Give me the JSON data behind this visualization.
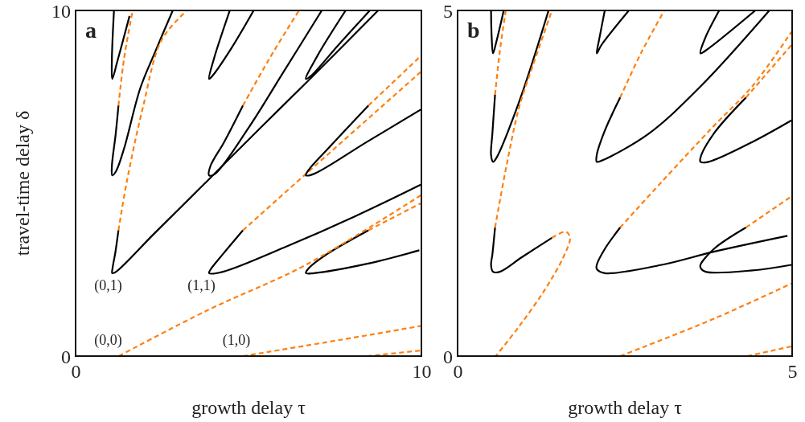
{
  "chart_data": [
    {
      "type": "line",
      "title": "a",
      "xlabel": "growth delay τ",
      "ylabel": "travel-time delay δ",
      "xlim": [
        0,
        10
      ],
      "ylim": [
        0,
        10
      ],
      "xticks": [
        0,
        10
      ],
      "yticks": [
        0,
        10
      ],
      "annotations": [
        "(0,1)",
        "(1,1)",
        "(0,0)",
        "(1,0)"
      ],
      "series": [
        {
          "color": "#000000",
          "line_style": "solid",
          "x": [
            1.11,
            1.05,
            1.06,
            1.2,
            1.56
          ],
          "values": [
            10,
            8.6,
            8.02,
            8.5,
            9.84
          ]
        },
        {
          "color": "#000000",
          "line_style": "solid",
          "x": [
            1.24,
            1.16,
            1.05,
            1.06,
            1.17,
            1.4,
            1.87,
            2.3,
            2.81
          ],
          "values": [
            7.25,
            6.43,
            5.5,
            5.23,
            5.35,
            6.0,
            7.75,
            8.8,
            10
          ]
        },
        {
          "color": "#ff7f0e",
          "line_style": "dashed",
          "x": [
            1.24,
            1.4,
            1.65
          ],
          "values": [
            7.25,
            8.6,
            10
          ]
        },
        {
          "color": "#000000",
          "line_style": "solid",
          "x": [
            1.24,
            1.15,
            1.07,
            1.06,
            1.17,
            2.25,
            3.8,
            5.34,
            6.66,
            8.75
          ],
          "values": [
            3.64,
            3.0,
            2.55,
            2.4,
            2.44,
            3.52,
            5.06,
            6.6,
            7.9,
            10
          ]
        },
        {
          "color": "#ff7f0e",
          "line_style": "dashed",
          "x": [
            1.24,
            1.48,
            1.95,
            2.49,
            3.22
          ],
          "values": [
            3.64,
            5.04,
            7.21,
            9.15,
            10
          ]
        },
        {
          "color": "#000000",
          "line_style": "solid",
          "x": [
            4.46,
            4.0,
            3.86,
            3.95,
            4.5,
            5.15
          ],
          "values": [
            10,
            8.6,
            8.02,
            8.1,
            8.9,
            10
          ]
        },
        {
          "color": "#000000",
          "line_style": "solid",
          "x": [
            4.84,
            4.3,
            3.9,
            3.86,
            4.03,
            5.0,
            6.0,
            7.12
          ],
          "values": [
            7.25,
            6.2,
            5.5,
            5.23,
            5.27,
            6.6,
            8.2,
            10
          ]
        },
        {
          "color": "#ff7f0e",
          "line_style": "dashed",
          "x": [
            4.84,
            5.6,
            6.46
          ],
          "values": [
            7.25,
            8.6,
            10
          ]
        },
        {
          "color": "#000000",
          "line_style": "solid",
          "x": [
            7.81,
            7.0,
            6.66,
            6.8,
            7.6,
            8.51
          ],
          "values": [
            10,
            8.7,
            8.02,
            8.1,
            9.0,
            10
          ]
        },
        {
          "color": "#000000",
          "line_style": "solid",
          "x": [
            4.84,
            4.26,
            3.9,
            3.86,
            4.26,
            6.12,
            8.05,
            9.98
          ],
          "values": [
            3.64,
            2.95,
            2.5,
            2.4,
            2.44,
            3.18,
            4.03,
            4.96
          ]
        },
        {
          "color": "#ff7f0e",
          "line_style": "dashed",
          "x": [
            4.84,
            6.66,
            9.98
          ],
          "values": [
            3.64,
            5.27,
            8.22
          ]
        },
        {
          "color": "#000000",
          "line_style": "solid",
          "x": [
            8.47,
            7.27,
            6.75,
            6.66,
            6.89,
            8.43,
            9.98
          ],
          "values": [
            7.25,
            5.97,
            5.4,
            5.23,
            5.27,
            6.2,
            7.13
          ]
        },
        {
          "color": "#ff7f0e",
          "line_style": "dashed",
          "x": [
            8.47,
            9.98
          ],
          "values": [
            7.25,
            8.68
          ]
        },
        {
          "color": "#000000",
          "line_style": "solid",
          "x": [
            8.47,
            7.27,
            6.75,
            6.66,
            6.89,
            8.43,
            9.94
          ],
          "values": [
            3.64,
            2.95,
            2.55,
            2.4,
            2.4,
            2.67,
            3.06
          ]
        },
        {
          "color": "#ff7f0e",
          "line_style": "dashed",
          "x": [
            8.47,
            9.98
          ],
          "values": [
            3.64,
            4.42
          ]
        },
        {
          "color": "#ff7f0e",
          "line_style": "dashed",
          "x": [
            1.25,
            3.8,
            6.66,
            9.98
          ],
          "values": [
            0,
            1.32,
            2.64,
            4.65
          ]
        },
        {
          "color": "#ff7f0e",
          "line_style": "dashed",
          "x": [
            4.84,
            7.66,
            9.98
          ],
          "values": [
            0,
            0.47,
            0.87
          ]
        },
        {
          "color": "#ff7f0e",
          "line_style": "dashed",
          "x": [
            8.43,
            9.98
          ],
          "values": [
            0,
            0.16
          ]
        }
      ]
    },
    {
      "type": "line",
      "title": "b",
      "xlabel": "growth delay τ",
      "xlim": [
        0,
        5
      ],
      "ylim": [
        0,
        5
      ],
      "xticks": [
        0,
        5
      ],
      "yticks": [
        0,
        5
      ],
      "series": [
        {
          "color": "#000000",
          "line_style": "solid",
          "x": [
            0.5,
            0.51,
            0.53,
            0.58,
            0.69
          ],
          "values": [
            5,
            4.6,
            4.38,
            4.55,
            5
          ]
        },
        {
          "color": "#ff7f0e",
          "line_style": "dashed",
          "x": [
            0.56,
            0.63,
            0.72
          ],
          "values": [
            3.78,
            4.4,
            5
          ]
        },
        {
          "color": "#000000",
          "line_style": "solid",
          "x": [
            0.56,
            0.52,
            0.5,
            0.53,
            0.57,
            0.92,
            1.36
          ],
          "values": [
            3.78,
            3.22,
            2.91,
            2.81,
            2.85,
            3.68,
            5
          ]
        },
        {
          "color": "#ff7f0e",
          "line_style": "dashed",
          "x": [
            0.56,
            0.73,
            0.92,
            1.12,
            1.41
          ],
          "values": [
            1.86,
            2.75,
            3.6,
            4.19,
            5
          ]
        },
        {
          "color": "#000000",
          "line_style": "solid",
          "x": [
            0.56,
            0.52,
            0.5,
            0.53,
            0.63,
            0.96,
            1.41
          ],
          "values": [
            1.86,
            1.47,
            1.32,
            1.22,
            1.22,
            1.43,
            1.71
          ]
        },
        {
          "color": "#ff7f0e",
          "line_style": "dashed",
          "x": [
            1.41,
            1.62,
            1.68,
            1.58,
            1.31,
            0.92,
            0.57
          ],
          "values": [
            1.71,
            1.8,
            1.71,
            1.43,
            0.97,
            0.43,
            0
          ]
        },
        {
          "color": "#000000",
          "line_style": "solid",
          "x": [
            2.2,
            2.12,
            2.08,
            2.15,
            2.56
          ],
          "values": [
            5,
            4.6,
            4.38,
            4.5,
            5
          ]
        },
        {
          "color": "#ff7f0e",
          "line_style": "dashed",
          "x": [
            2.43,
            2.75,
            3.09
          ],
          "values": [
            3.74,
            4.4,
            5
          ]
        },
        {
          "color": "#000000",
          "line_style": "solid",
          "x": [
            2.43,
            2.2,
            2.08,
            2.08,
            2.16,
            2.86,
            3.64,
            4.66
          ],
          "values": [
            3.74,
            3.26,
            2.91,
            2.81,
            2.83,
            3.22,
            3.91,
            5
          ]
        },
        {
          "color": "#000000",
          "line_style": "solid",
          "x": [
            3.91,
            3.7,
            3.63,
            3.75,
            4.45
          ],
          "values": [
            5,
            4.6,
            4.38,
            4.45,
            5
          ]
        },
        {
          "color": "#ff7f0e",
          "line_style": "dashed",
          "x": [
            2.43,
            3.05,
            3.83,
            4.41,
            4.99
          ],
          "values": [
            1.86,
            2.52,
            3.33,
            3.91,
            4.69
          ]
        },
        {
          "color": "#000000",
          "line_style": "solid",
          "x": [
            2.43,
            2.2,
            2.08,
            2.08,
            2.2,
            3.05,
            3.83,
            4.93
          ],
          "values": [
            1.86,
            1.55,
            1.32,
            1.26,
            1.2,
            1.32,
            1.51,
            1.74
          ]
        },
        {
          "color": "#000000",
          "line_style": "solid",
          "x": [
            4.31,
            3.83,
            3.63,
            3.63,
            3.71,
            4.41,
            4.99
          ],
          "values": [
            1.86,
            1.55,
            1.32,
            1.28,
            1.22,
            1.24,
            1.32
          ]
        },
        {
          "color": "#ff7f0e",
          "line_style": "dashed",
          "x": [
            4.31,
            4.99
          ],
          "values": [
            1.86,
            2.31
          ]
        },
        {
          "color": "#000000",
          "line_style": "solid",
          "x": [
            4.31,
            3.83,
            3.63,
            3.63,
            3.75,
            4.41,
            4.99
          ],
          "values": [
            3.74,
            3.22,
            2.87,
            2.81,
            2.81,
            3.1,
            3.41
          ]
        },
        {
          "color": "#ff7f0e",
          "line_style": "dashed",
          "x": [
            4.31,
            4.99
          ],
          "values": [
            3.74,
            4.5
          ]
        },
        {
          "color": "#ff7f0e",
          "line_style": "dashed",
          "x": [
            2.43,
            3.83,
            4.99
          ],
          "values": [
            0,
            0.54,
            1.05
          ]
        },
        {
          "color": "#ff7f0e",
          "line_style": "dashed",
          "x": [
            4.33,
            4.99
          ],
          "values": [
            0,
            0.14
          ]
        }
      ]
    }
  ]
}
